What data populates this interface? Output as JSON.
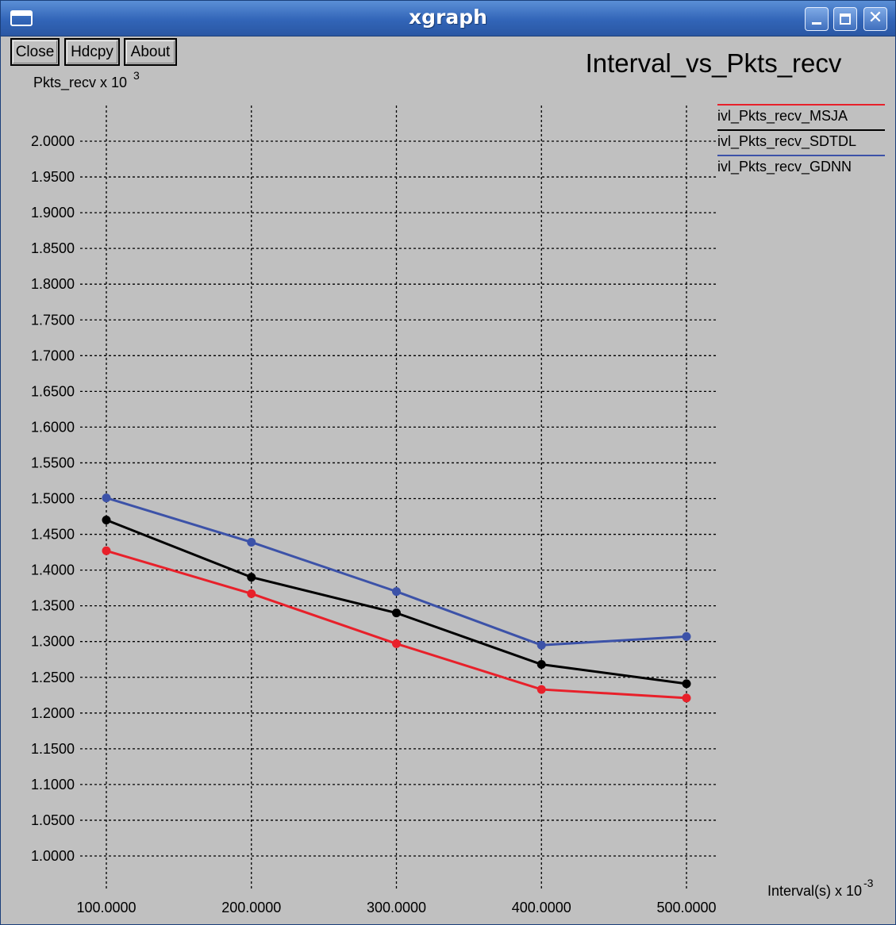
{
  "window": {
    "title": "xgraph",
    "menu_icon": "window-menu-icon",
    "controls": {
      "minimize_icon": "minimize-icon",
      "maximize_icon": "maximize-icon",
      "close_symbol": "✕"
    }
  },
  "toolbar": {
    "close_label": "Close",
    "hdcpy_label": "Hdcpy",
    "about_label": "About"
  },
  "chart_data": {
    "type": "line",
    "title": "Interval_vs_Pkts_recv",
    "ylabel": "Pkts_recv x 10",
    "ylabel_exp": "3",
    "xlabel": "Interval(s) x 10",
    "xlabel_exp": "-3",
    "x": [
      100,
      200,
      300,
      400,
      500
    ],
    "x_tick_labels": [
      "100.0000",
      "200.0000",
      "300.0000",
      "400.0000",
      "500.0000"
    ],
    "y_ticks": [
      1.0,
      1.05,
      1.1,
      1.15,
      1.2,
      1.25,
      1.3,
      1.35,
      1.4,
      1.45,
      1.5,
      1.55,
      1.6,
      1.65,
      1.7,
      1.75,
      1.8,
      1.85,
      1.9,
      1.95,
      2.0
    ],
    "y_tick_labels": [
      "1.0000",
      "1.0500",
      "1.1000",
      "1.1500",
      "1.2000",
      "1.2500",
      "1.3000",
      "1.3500",
      "1.4000",
      "1.4500",
      "1.5000",
      "1.5500",
      "1.6000",
      "1.6500",
      "1.7000",
      "1.7500",
      "1.8000",
      "1.8500",
      "1.9000",
      "1.9500",
      "2.0000"
    ],
    "ylim": [
      1.0,
      2.0
    ],
    "xlim": [
      100,
      500
    ],
    "grid": true,
    "legend_position": "top-right",
    "series": [
      {
        "name": "ivl_Pkts_recv_MSJA",
        "color": "#e8202a",
        "values": [
          1.427,
          1.367,
          1.297,
          1.233,
          1.221
        ]
      },
      {
        "name": "ivl_Pkts_recv_SDTDL",
        "color": "#000000",
        "values": [
          1.47,
          1.39,
          1.34,
          1.268,
          1.241
        ]
      },
      {
        "name": "ivl_Pkts_recv_GDNN",
        "color": "#3c52a8",
        "values": [
          1.501,
          1.439,
          1.37,
          1.295,
          1.307
        ]
      }
    ]
  }
}
